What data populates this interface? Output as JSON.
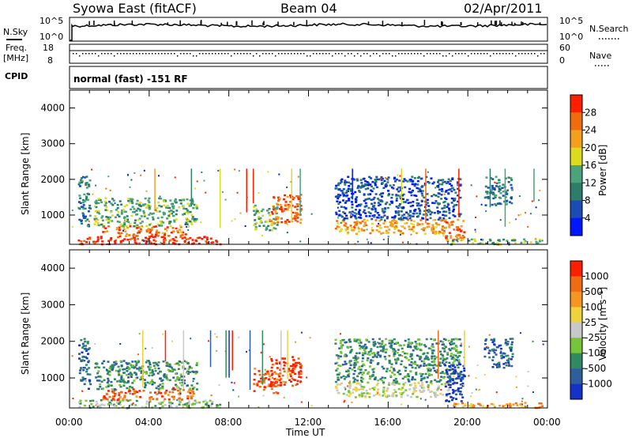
{
  "header": {
    "title": "Syowa East (fitACF)",
    "beam": "Beam 04",
    "date": "02/Apr/2011"
  },
  "noise_panel": {
    "left_label": "N.Sky",
    "right_label": "N.Search",
    "left_top_tick": "10^5",
    "left_bottom_tick": "10^0",
    "right_top_tick": "10^5",
    "right_bottom_tick": "10^0"
  },
  "freq_panel": {
    "left_label_1": "Freq.",
    "left_label_2": "[MHz]",
    "right_label": "Nave",
    "left_top_tick": "18",
    "left_bottom_tick": "8",
    "right_top_tick": "60",
    "right_bottom_tick": "0"
  },
  "cpid_panel": {
    "left_label": "CPID",
    "text": "normal (fast) -151 RF"
  },
  "x_axis": {
    "label": "Time UT",
    "ticks": [
      "00:00",
      "04:00",
      "08:00",
      "12:00",
      "16:00",
      "20:00",
      "00:00"
    ]
  },
  "colors": {
    "power": [
      "#0016ff",
      "#1a4cb4",
      "#2e7d6a",
      "#4aa37a",
      "#dcdc1e",
      "#f4a01c",
      "#f06c0c",
      "#ff1e00"
    ],
    "velocity": [
      "#1432c8",
      "#2e5f9c",
      "#2f8a62",
      "#76c43a",
      "#c8c8c8",
      "#f0d23c",
      "#f59622",
      "#f06c12",
      "#ff1e00"
    ]
  },
  "chart_data": [
    {
      "type": "heatmap",
      "name": "power",
      "ylabel": "Slant Range [km]",
      "ylim": [
        180,
        4500
      ],
      "yticks": [
        1000,
        2000,
        3000,
        4000
      ],
      "xlim_hours": [
        0,
        24
      ],
      "colorbar": {
        "label": "Power [dB]",
        "range": [
          0,
          32
        ],
        "ticks": [
          4,
          8,
          12,
          16,
          20,
          24,
          28
        ]
      },
      "features": [
        {
          "t0": 0.4,
          "t1": 7.6,
          "r0": 200,
          "r1": 420,
          "level": 7
        },
        {
          "t0": 1.6,
          "t1": 5.8,
          "r0": 420,
          "r1": 720,
          "level": 6
        },
        {
          "t0": 1.2,
          "t1": 6.4,
          "r0": 700,
          "r1": 1500,
          "level": 3
        },
        {
          "t0": 0.4,
          "t1": 1.0,
          "r0": 700,
          "r1": 2100,
          "level": 2
        },
        {
          "t0": 9.2,
          "t1": 10.4,
          "r0": 600,
          "r1": 1300,
          "level": 3
        },
        {
          "t0": 10.0,
          "t1": 11.6,
          "r0": 800,
          "r1": 1600,
          "level": 6
        },
        {
          "t0": 13.3,
          "t1": 19.0,
          "r0": 500,
          "r1": 900,
          "level": 5
        },
        {
          "t0": 13.3,
          "t1": 19.6,
          "r0": 900,
          "r1": 2100,
          "level": 1
        },
        {
          "t0": 18.8,
          "t1": 19.8,
          "r0": 300,
          "r1": 900,
          "level": 6
        },
        {
          "t0": 20.8,
          "t1": 22.2,
          "r0": 1300,
          "r1": 2100,
          "level": 2
        },
        {
          "t0": 19.0,
          "t1": 23.9,
          "r0": 200,
          "r1": 350,
          "level": 3
        }
      ]
    },
    {
      "type": "heatmap",
      "name": "velocity",
      "ylabel": "Slant Range [km]",
      "ylim": [
        180,
        4500
      ],
      "yticks": [
        1000,
        2000,
        3000,
        4000
      ],
      "xlim_hours": [
        0,
        24
      ],
      "colorbar": {
        "label": "Velocity [m s⁻¹]",
        "ticks": [
          "1000",
          "500",
          "100",
          "25",
          "-25",
          "-100",
          "-500",
          "-1000"
        ]
      },
      "features": [
        {
          "t0": 0.4,
          "t1": 7.6,
          "r0": 200,
          "r1": 420,
          "level": 3
        },
        {
          "t0": 1.6,
          "t1": 6.2,
          "r0": 420,
          "r1": 720,
          "level": 7
        },
        {
          "t0": 1.2,
          "t1": 6.4,
          "r0": 700,
          "r1": 1500,
          "level": 2
        },
        {
          "t0": 0.4,
          "t1": 1.0,
          "r0": 700,
          "r1": 2100,
          "level": 1
        },
        {
          "t0": 9.2,
          "t1": 10.4,
          "r0": 600,
          "r1": 1300,
          "level": 7
        },
        {
          "t0": 10.0,
          "t1": 11.6,
          "r0": 800,
          "r1": 1600,
          "level": 8
        },
        {
          "t0": 13.3,
          "t1": 19.0,
          "r0": 500,
          "r1": 900,
          "level": 4
        },
        {
          "t0": 13.3,
          "t1": 19.6,
          "r0": 900,
          "r1": 2100,
          "level": 2
        },
        {
          "t0": 18.8,
          "t1": 19.8,
          "r0": 300,
          "r1": 1400,
          "level": 0
        },
        {
          "t0": 20.8,
          "t1": 22.2,
          "r0": 1300,
          "r1": 2100,
          "level": 1
        },
        {
          "t0": 19.0,
          "t1": 23.9,
          "r0": 200,
          "r1": 350,
          "level": 6
        }
      ]
    }
  ]
}
